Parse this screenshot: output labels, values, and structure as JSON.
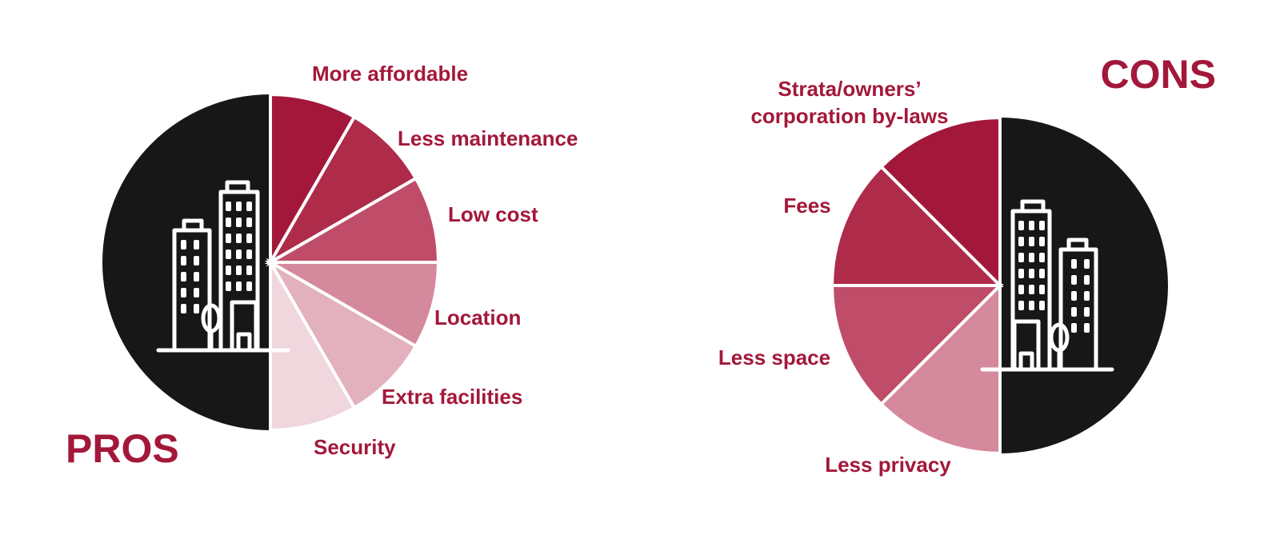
{
  "colors": {
    "accent": "#a3183a",
    "dark": "#171717",
    "icon": "#ffffff",
    "segment_shades": [
      "#a3183a",
      "#ae2b4a",
      "#bf4d69",
      "#d5899c",
      "#e3b0bd",
      "#f0d6dd"
    ]
  },
  "pros": {
    "title": "PROS",
    "icon": "city-buildings-icon",
    "items": [
      "More affordable",
      "Less maintenance",
      "Low cost",
      "Location",
      "Extra facilities",
      "Security"
    ]
  },
  "cons": {
    "title": "CONS",
    "icon": "city-buildings-icon",
    "items": [
      {
        "lines": [
          "Strata/owners’",
          "corporation by-laws"
        ]
      },
      {
        "lines": [
          "Fees"
        ]
      },
      {
        "lines": [
          "Less space"
        ]
      },
      {
        "lines": [
          "Less privacy"
        ]
      }
    ]
  }
}
